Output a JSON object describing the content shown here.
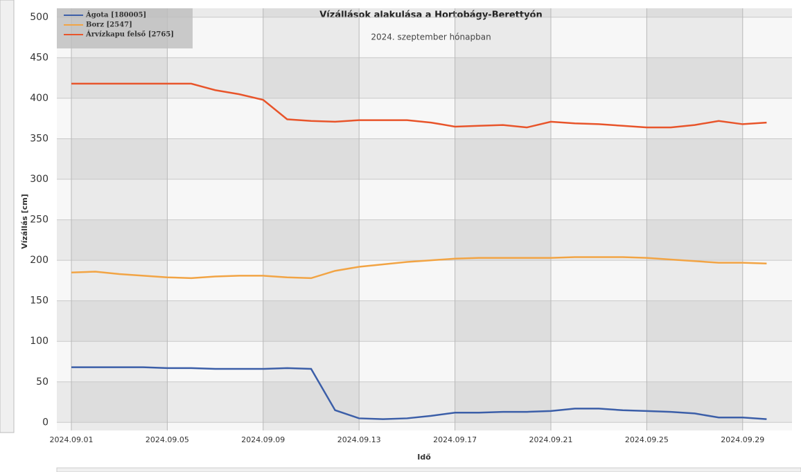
{
  "chart_data": {
    "type": "line",
    "title": "Vízállások alakulása a Hortobágy-Berettyón",
    "subtitle": "2024. szeptember hónapban",
    "x_label": "Idő",
    "y_label": "Vízállás [cm]",
    "x": [
      "2024.09.01",
      "2024.09.02",
      "2024.09.03",
      "2024.09.04",
      "2024.09.05",
      "2024.09.06",
      "2024.09.07",
      "2024.09.08",
      "2024.09.09",
      "2024.09.10",
      "2024.09.11",
      "2024.09.12",
      "2024.09.13",
      "2024.09.14",
      "2024.09.15",
      "2024.09.16",
      "2024.09.17",
      "2024.09.18",
      "2024.09.19",
      "2024.09.20",
      "2024.09.21",
      "2024.09.22",
      "2024.09.23",
      "2024.09.24",
      "2024.09.25",
      "2024.09.26",
      "2024.09.27",
      "2024.09.28",
      "2024.09.29",
      "2024.09.30"
    ],
    "series": [
      {
        "name": "Ágota [180005]",
        "color": "#3b5ea8",
        "values": [
          68,
          68,
          68,
          68,
          67,
          67,
          66,
          66,
          66,
          67,
          66,
          15,
          5,
          4,
          5,
          8,
          12,
          12,
          13,
          13,
          14,
          17,
          17,
          15,
          14,
          13,
          11,
          6,
          6,
          4
        ]
      },
      {
        "name": "Borz [2547]",
        "color": "#f2a444",
        "values": [
          185,
          186,
          183,
          181,
          179,
          178,
          180,
          181,
          181,
          179,
          178,
          187,
          192,
          195,
          198,
          200,
          202,
          203,
          203,
          203,
          203,
          204,
          204,
          204,
          203,
          201,
          199,
          197,
          197,
          196
        ]
      },
      {
        "name": "Árvízkapu felső [2765]",
        "color": "#e8542a",
        "values": [
          418,
          418,
          418,
          418,
          418,
          418,
          410,
          405,
          398,
          374,
          372,
          371,
          373,
          373,
          373,
          370,
          365,
          366,
          367,
          364,
          371,
          369,
          368,
          366,
          364,
          364,
          367,
          372,
          368,
          370
        ]
      }
    ],
    "xlim": [
      "2024.09.01",
      "2024.10.01"
    ],
    "xticks": [
      "2024.09.01",
      "2024.09.05",
      "2024.09.09",
      "2024.09.13",
      "2024.09.17",
      "2024.09.21",
      "2024.09.25",
      "2024.09.29"
    ],
    "ylim": [
      -10,
      511
    ],
    "yticks": [
      0,
      50,
      100,
      150,
      200,
      250,
      300,
      350,
      400,
      450,
      500
    ],
    "grid": true,
    "legend": "top-left"
  }
}
